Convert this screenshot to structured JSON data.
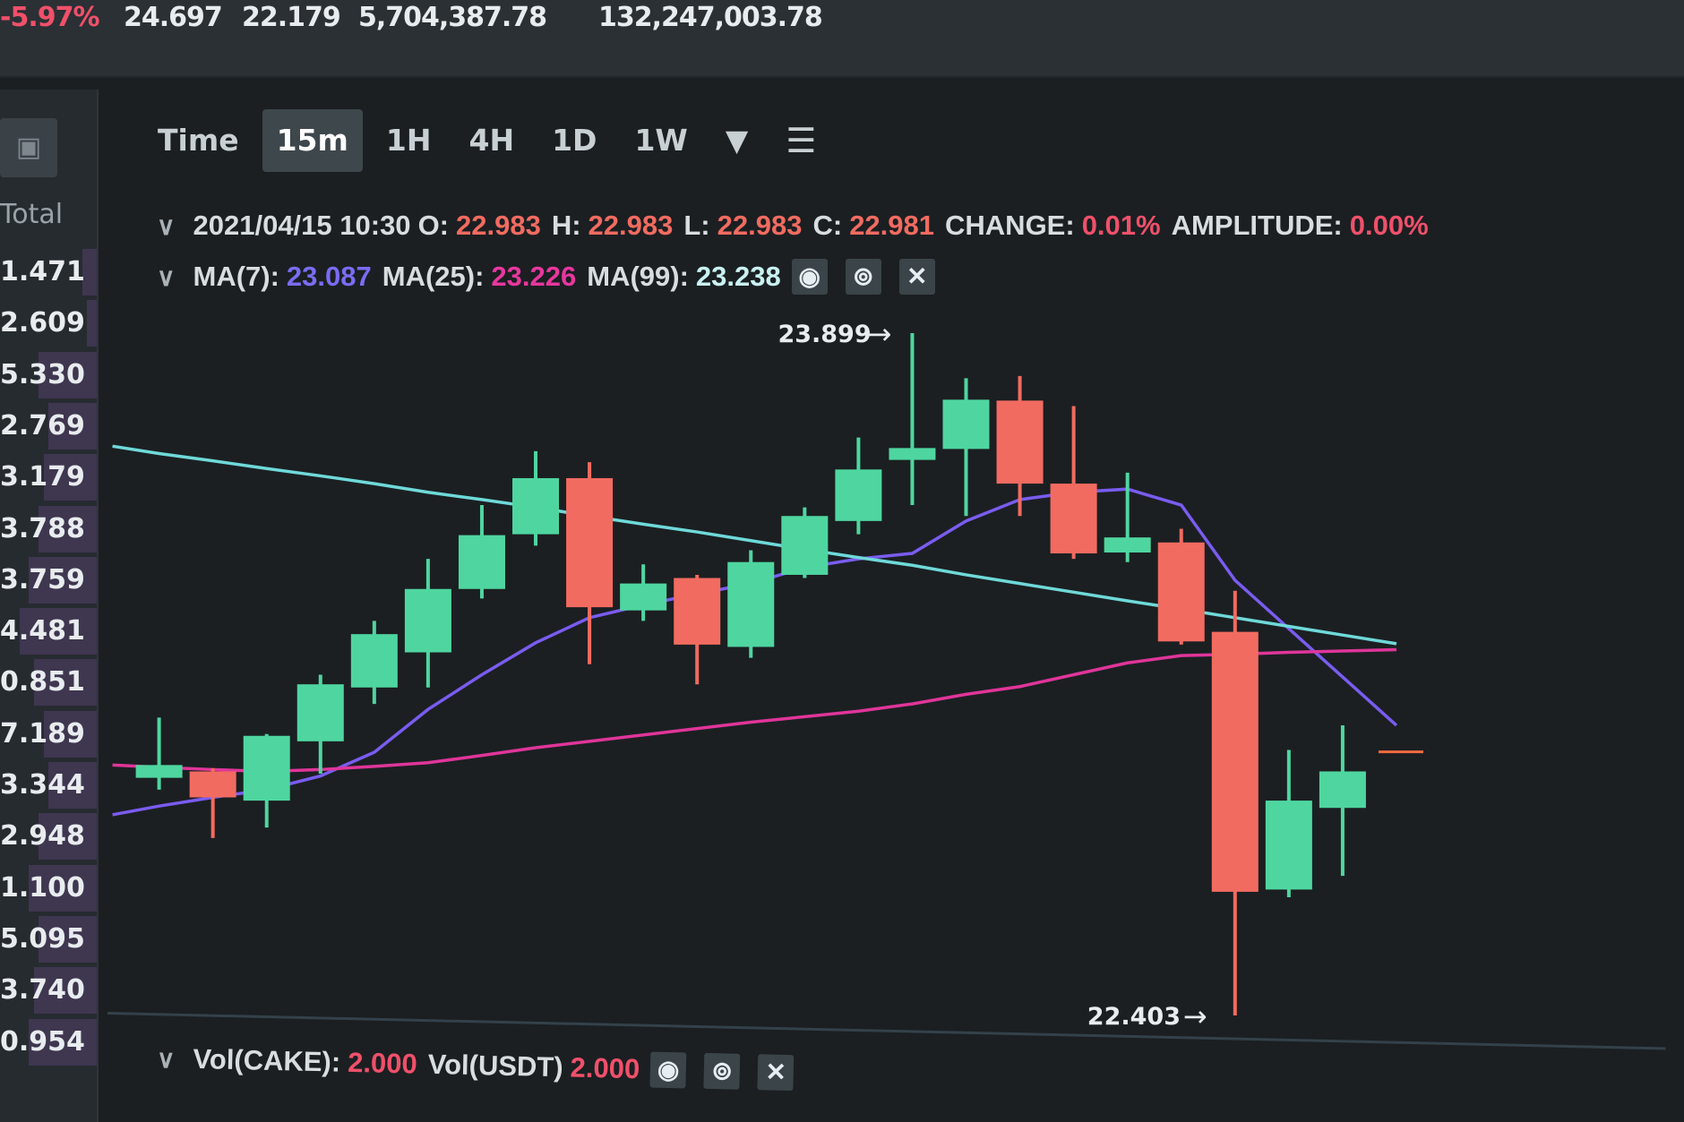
{
  "ticker": {
    "change_pct": "-5.97%",
    "high_24h": "24.697",
    "low_24h": "22.179",
    "volume_base": "5,704,387.78",
    "volume_quote": "132,247,003.78"
  },
  "order_panel": {
    "header": "Total",
    "rows": [
      "1.471",
      "2.609",
      "5.330",
      "2.769",
      "3.179",
      "3.788",
      "3.759",
      "4.481",
      "0.851",
      "7.189",
      "3.344",
      "2.948",
      "1.100",
      "5.095",
      "3.740",
      "0.954"
    ],
    "depth": [
      0.15,
      0.1,
      0.6,
      0.5,
      0.55,
      0.6,
      0.7,
      0.8,
      0.65,
      0.55,
      0.5,
      0.6,
      0.7,
      0.6,
      0.65,
      0.7
    ]
  },
  "toolbar": {
    "items": [
      "Time",
      "15m",
      "1H",
      "4H",
      "1D",
      "1W"
    ],
    "active": "15m",
    "more_icon": "triangle-down-icon",
    "settings_icon": "sliders-icon"
  },
  "ohlc_legend": {
    "datetime": "2021/04/15 10:30",
    "open_label": "O:",
    "open": "22.983",
    "high_label": "H:",
    "high": "22.983",
    "low_label": "L:",
    "low": "22.983",
    "close_label": "C:",
    "close": "22.981",
    "change_label": "CHANGE:",
    "change": "0.01%",
    "amplitude_label": "AMPLITUDE:",
    "amplitude": "0.00%"
  },
  "ma_legend": {
    "ma7_label": "MA(7):",
    "ma7": "23.087",
    "ma25_label": "MA(25):",
    "ma25": "23.226",
    "ma99_label": "MA(99):",
    "ma99": "23.238"
  },
  "vol_legend": {
    "vol_base_label": "Vol(CAKE):",
    "vol_base": "2.000",
    "vol_quote_label": "Vol(USDT)",
    "vol_quote": "2.000"
  },
  "colors": {
    "up": "#4fd6a0",
    "down": "#f26b60",
    "ma7": "#7a5cf0",
    "ma25": "#e0359a",
    "ma99": "#6fd9d9",
    "negative": "#f0506a"
  },
  "chart_data": {
    "type": "candlestick",
    "interval": "15m",
    "high_marker": "23.899",
    "low_marker": "22.403",
    "ylim": [
      22.403,
      23.899
    ],
    "candles": [
      {
        "o": 22.924,
        "h": 23.056,
        "l": 22.898,
        "c": 22.952
      },
      {
        "o": 22.938,
        "h": 22.945,
        "l": 22.792,
        "c": 22.881
      },
      {
        "o": 22.874,
        "h": 23.02,
        "l": 22.815,
        "c": 23.016
      },
      {
        "o": 23.004,
        "h": 23.15,
        "l": 22.933,
        "c": 23.129
      },
      {
        "o": 23.122,
        "h": 23.268,
        "l": 23.086,
        "c": 23.239
      },
      {
        "o": 23.199,
        "h": 23.404,
        "l": 23.122,
        "c": 23.338
      },
      {
        "o": 23.338,
        "h": 23.522,
        "l": 23.317,
        "c": 23.456
      },
      {
        "o": 23.458,
        "h": 23.64,
        "l": 23.433,
        "c": 23.581
      },
      {
        "o": 23.581,
        "h": 23.616,
        "l": 23.173,
        "c": 23.298
      },
      {
        "o": 23.291,
        "h": 23.392,
        "l": 23.268,
        "c": 23.35
      },
      {
        "o": 23.362,
        "h": 23.369,
        "l": 23.129,
        "c": 23.216
      },
      {
        "o": 23.211,
        "h": 23.423,
        "l": 23.187,
        "c": 23.397
      },
      {
        "o": 23.369,
        "h": 23.517,
        "l": 23.362,
        "c": 23.498
      },
      {
        "o": 23.487,
        "h": 23.67,
        "l": 23.458,
        "c": 23.6
      },
      {
        "o": 23.621,
        "h": 23.899,
        "l": 23.522,
        "c": 23.647
      },
      {
        "o": 23.645,
        "h": 23.8,
        "l": 23.498,
        "c": 23.753
      },
      {
        "o": 23.751,
        "h": 23.805,
        "l": 23.498,
        "c": 23.569
      },
      {
        "o": 23.569,
        "h": 23.739,
        "l": 23.404,
        "c": 23.416
      },
      {
        "o": 23.418,
        "h": 23.593,
        "l": 23.397,
        "c": 23.451
      },
      {
        "o": 23.44,
        "h": 23.47,
        "l": 23.216,
        "c": 23.223
      },
      {
        "o": 23.244,
        "h": 23.334,
        "l": 22.403,
        "c": 22.674
      },
      {
        "o": 22.679,
        "h": 22.985,
        "l": 22.662,
        "c": 22.874
      },
      {
        "o": 22.858,
        "h": 23.039,
        "l": 22.709,
        "c": 22.938
      }
    ],
    "current_price": 22.981,
    "series": [
      {
        "name": "MA(7)",
        "values": [
          22.862,
          22.881,
          22.898,
          22.928,
          22.98,
          23.074,
          23.15,
          23.22,
          23.275,
          23.303,
          23.327,
          23.35,
          23.385,
          23.404,
          23.416,
          23.487,
          23.534,
          23.55,
          23.557,
          23.522,
          23.357,
          23.251,
          23.145
        ]
      },
      {
        "name": "MA(25)",
        "values": [
          22.947,
          22.942,
          22.938,
          22.942,
          22.949,
          22.957,
          22.973,
          22.99,
          23.004,
          23.018,
          23.032,
          23.046,
          23.058,
          23.07,
          23.086,
          23.107,
          23.124,
          23.15,
          23.176,
          23.192,
          23.195,
          23.199,
          23.202
        ]
      },
      {
        "name": "MA(99)",
        "values": [
          23.635,
          23.619,
          23.602,
          23.586,
          23.569,
          23.55,
          23.534,
          23.517,
          23.498,
          23.48,
          23.463,
          23.444,
          23.425,
          23.407,
          23.39,
          23.369,
          23.35,
          23.331,
          23.312,
          23.294,
          23.275,
          23.256,
          23.237
        ]
      }
    ]
  }
}
